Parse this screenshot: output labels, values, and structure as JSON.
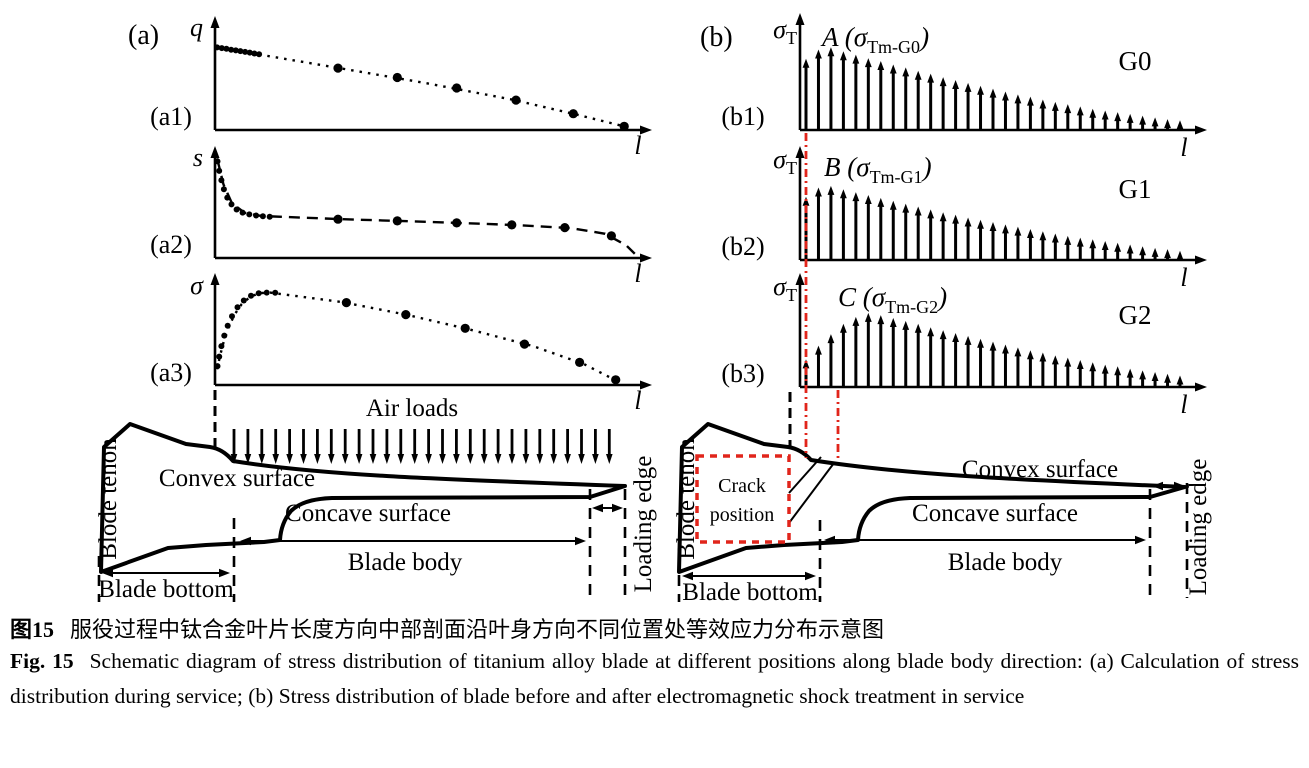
{
  "figure": {
    "panel_a": {
      "label": "(a)",
      "subplots": [
        {
          "label": "(a1)",
          "ylabel": "q",
          "xlabel": "l"
        },
        {
          "label": "(a2)",
          "ylabel": "s",
          "xlabel": "l"
        },
        {
          "label": "(a3)",
          "ylabel": "σ",
          "xlabel": "l"
        }
      ],
      "air_loads_label": "Air loads",
      "blade": {
        "tenon": "Blode tenon",
        "convex": "Convex surface",
        "concave": "Concave surface",
        "body": "Blade body",
        "bottom": "Blade bottom",
        "loading_edge": "Loading edge"
      }
    },
    "panel_b": {
      "label": "(b)",
      "subplots": [
        {
          "label": "(b1)",
          "ylabel_sym": "σ",
          "ylabel_sub": "T",
          "ann_prefix": "A (σ",
          "ann_sub": "Tm-G0",
          "ann_suffix": ")",
          "group": "G0",
          "xlabel": "l"
        },
        {
          "label": "(b2)",
          "ylabel_sym": "σ",
          "ylabel_sub": "T",
          "ann_prefix": "B (σ",
          "ann_sub": "Tm-G1",
          "ann_suffix": ")",
          "group": "G1",
          "xlabel": "l"
        },
        {
          "label": "(b3)",
          "ylabel_sym": "σ",
          "ylabel_sub": "T",
          "ann_prefix": "C (σ",
          "ann_sub": "Tm-G2",
          "ann_suffix": ")",
          "group": "G2",
          "xlabel": "l"
        }
      ],
      "blade": {
        "tenon": "Blode tenon",
        "convex": "Convex surface",
        "concave": "Concave surface",
        "body": "Blade body",
        "bottom": "Blade bottom",
        "loading_edge": "Loading edge",
        "crack_line1": "Crack",
        "crack_line2": "position"
      }
    }
  },
  "caption": {
    "zh_label": "图15",
    "zh_text": "服役过程中钛合金叶片长度方向中部剖面沿叶身方向不同位置处等效应力分布示意图",
    "en_label": "Fig. 15",
    "en_text": "Schematic diagram of stress distribution of titanium alloy blade at different positions along blade body direction: (a) Calculation of stress distribution during service; (b) Stress distribution of blade before and after electromagnetic shock treatment in service"
  },
  "colors": {
    "accent_red": "#e1251b",
    "ink": "#000000"
  },
  "chart_data": [
    {
      "id": "a1",
      "type": "line",
      "ylabel": "q",
      "xlabel": "l",
      "dash": "2.5 6",
      "curve": [
        [
          0.005,
          0.79
        ],
        [
          0.11,
          0.715
        ],
        [
          0.3,
          0.585
        ],
        [
          0.5,
          0.445
        ],
        [
          0.7,
          0.29
        ],
        [
          0.85,
          0.15
        ],
        [
          0.985,
          0.015
        ]
      ],
      "cluster": [
        [
          0.005,
          0.787
        ],
        [
          0.016,
          0.78
        ],
        [
          0.027,
          0.773
        ],
        [
          0.038,
          0.765
        ],
        [
          0.049,
          0.758
        ],
        [
          0.06,
          0.751
        ],
        [
          0.071,
          0.744
        ],
        [
          0.082,
          0.737
        ],
        [
          0.093,
          0.729
        ],
        [
          0.104,
          0.722
        ]
      ],
      "markers": [
        [
          0.29,
          0.59
        ],
        [
          0.43,
          0.5
        ],
        [
          0.57,
          0.4
        ],
        [
          0.71,
          0.285
        ],
        [
          0.845,
          0.155
        ],
        [
          0.965,
          0.035
        ]
      ]
    },
    {
      "id": "a2",
      "type": "line",
      "ylabel": "s",
      "xlabel": "l",
      "dash": "11 7",
      "curve": [
        [
          0.005,
          0.95
        ],
        [
          0.02,
          0.7
        ],
        [
          0.04,
          0.52
        ],
        [
          0.07,
          0.43
        ],
        [
          0.11,
          0.4
        ],
        [
          0.3,
          0.37
        ],
        [
          0.5,
          0.345
        ],
        [
          0.7,
          0.315
        ],
        [
          0.84,
          0.285
        ],
        [
          0.92,
          0.23
        ],
        [
          0.97,
          0.12
        ],
        [
          0.995,
          0.02
        ]
      ],
      "cluster": [
        [
          0.006,
          0.92
        ],
        [
          0.01,
          0.83
        ],
        [
          0.015,
          0.74
        ],
        [
          0.021,
          0.655
        ],
        [
          0.029,
          0.575
        ],
        [
          0.039,
          0.51
        ],
        [
          0.051,
          0.462
        ],
        [
          0.065,
          0.432
        ],
        [
          0.081,
          0.415
        ],
        [
          0.097,
          0.405
        ],
        [
          0.113,
          0.398
        ],
        [
          0.129,
          0.392
        ]
      ],
      "markers": [
        [
          0.29,
          0.37
        ],
        [
          0.43,
          0.353
        ],
        [
          0.57,
          0.334
        ],
        [
          0.7,
          0.315
        ],
        [
          0.825,
          0.29
        ],
        [
          0.935,
          0.21
        ]
      ]
    },
    {
      "id": "a3",
      "type": "line",
      "ylabel": "σ",
      "xlabel": "l",
      "dash": "2.5 6",
      "curve": [
        [
          0.005,
          0.15
        ],
        [
          0.012,
          0.28
        ],
        [
          0.021,
          0.42
        ],
        [
          0.032,
          0.55
        ],
        [
          0.046,
          0.67
        ],
        [
          0.063,
          0.77
        ],
        [
          0.083,
          0.84
        ],
        [
          0.105,
          0.875
        ],
        [
          0.13,
          0.88
        ],
        [
          0.3,
          0.79
        ],
        [
          0.45,
          0.67
        ],
        [
          0.6,
          0.53
        ],
        [
          0.75,
          0.37
        ],
        [
          0.87,
          0.2
        ],
        [
          0.945,
          0.045
        ]
      ],
      "cluster": [
        [
          0.006,
          0.18
        ],
        [
          0.01,
          0.27
        ],
        [
          0.015,
          0.37
        ],
        [
          0.022,
          0.47
        ],
        [
          0.03,
          0.565
        ],
        [
          0.04,
          0.655
        ],
        [
          0.053,
          0.74
        ],
        [
          0.068,
          0.805
        ],
        [
          0.085,
          0.85
        ],
        [
          0.103,
          0.873
        ],
        [
          0.122,
          0.88
        ],
        [
          0.142,
          0.878
        ]
      ],
      "markers": [
        [
          0.31,
          0.785
        ],
        [
          0.45,
          0.67
        ],
        [
          0.59,
          0.54
        ],
        [
          0.73,
          0.39
        ],
        [
          0.86,
          0.215
        ],
        [
          0.945,
          0.05
        ]
      ]
    },
    {
      "id": "b1",
      "type": "stem",
      "ylabel": "σT",
      "xlabel": "l",
      "series": "G0",
      "peak_label": "A (σTm-G0)",
      "values": [
        0.62,
        0.7,
        0.72,
        0.685,
        0.655,
        0.625,
        0.6,
        0.57,
        0.545,
        0.515,
        0.49,
        0.46,
        0.435,
        0.41,
        0.385,
        0.36,
        0.335,
        0.31,
        0.29,
        0.265,
        0.245,
        0.225,
        0.205,
        0.185,
        0.17,
        0.155,
        0.14,
        0.125,
        0.11,
        0.095,
        0.085
      ]
    },
    {
      "id": "b2",
      "type": "stem",
      "ylabel": "σT",
      "xlabel": "l",
      "series": "G1",
      "peak_label": "B (σTm-G1)",
      "values": [
        0.55,
        0.63,
        0.645,
        0.615,
        0.59,
        0.565,
        0.54,
        0.515,
        0.49,
        0.465,
        0.44,
        0.415,
        0.395,
        0.37,
        0.35,
        0.33,
        0.31,
        0.29,
        0.27,
        0.25,
        0.23,
        0.21,
        0.195,
        0.18,
        0.165,
        0.15,
        0.135,
        0.12,
        0.105,
        0.095,
        0.08
      ]
    },
    {
      "id": "b3",
      "type": "stem",
      "ylabel": "σT",
      "xlabel": "l",
      "series": "G2",
      "peak_label": "C (σTm-G2)",
      "values": [
        0.24,
        0.36,
        0.46,
        0.55,
        0.61,
        0.645,
        0.625,
        0.6,
        0.575,
        0.55,
        0.52,
        0.495,
        0.47,
        0.445,
        0.42,
        0.395,
        0.37,
        0.345,
        0.32,
        0.3,
        0.275,
        0.255,
        0.235,
        0.215,
        0.195,
        0.18,
        0.16,
        0.145,
        0.13,
        0.115,
        0.1
      ]
    }
  ]
}
